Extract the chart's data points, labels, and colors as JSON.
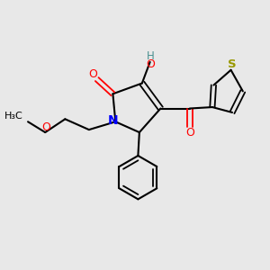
{
  "bg_color": "#e8e8e8",
  "bond_color": "#000000",
  "N_color": "#0000ff",
  "O_color": "#ff0000",
  "S_color": "#999900",
  "OH_color": "#4a9090",
  "figsize": [
    3.0,
    3.0
  ],
  "dpi": 100,
  "xlim": [
    0,
    10
  ],
  "ylim": [
    0,
    10
  ]
}
